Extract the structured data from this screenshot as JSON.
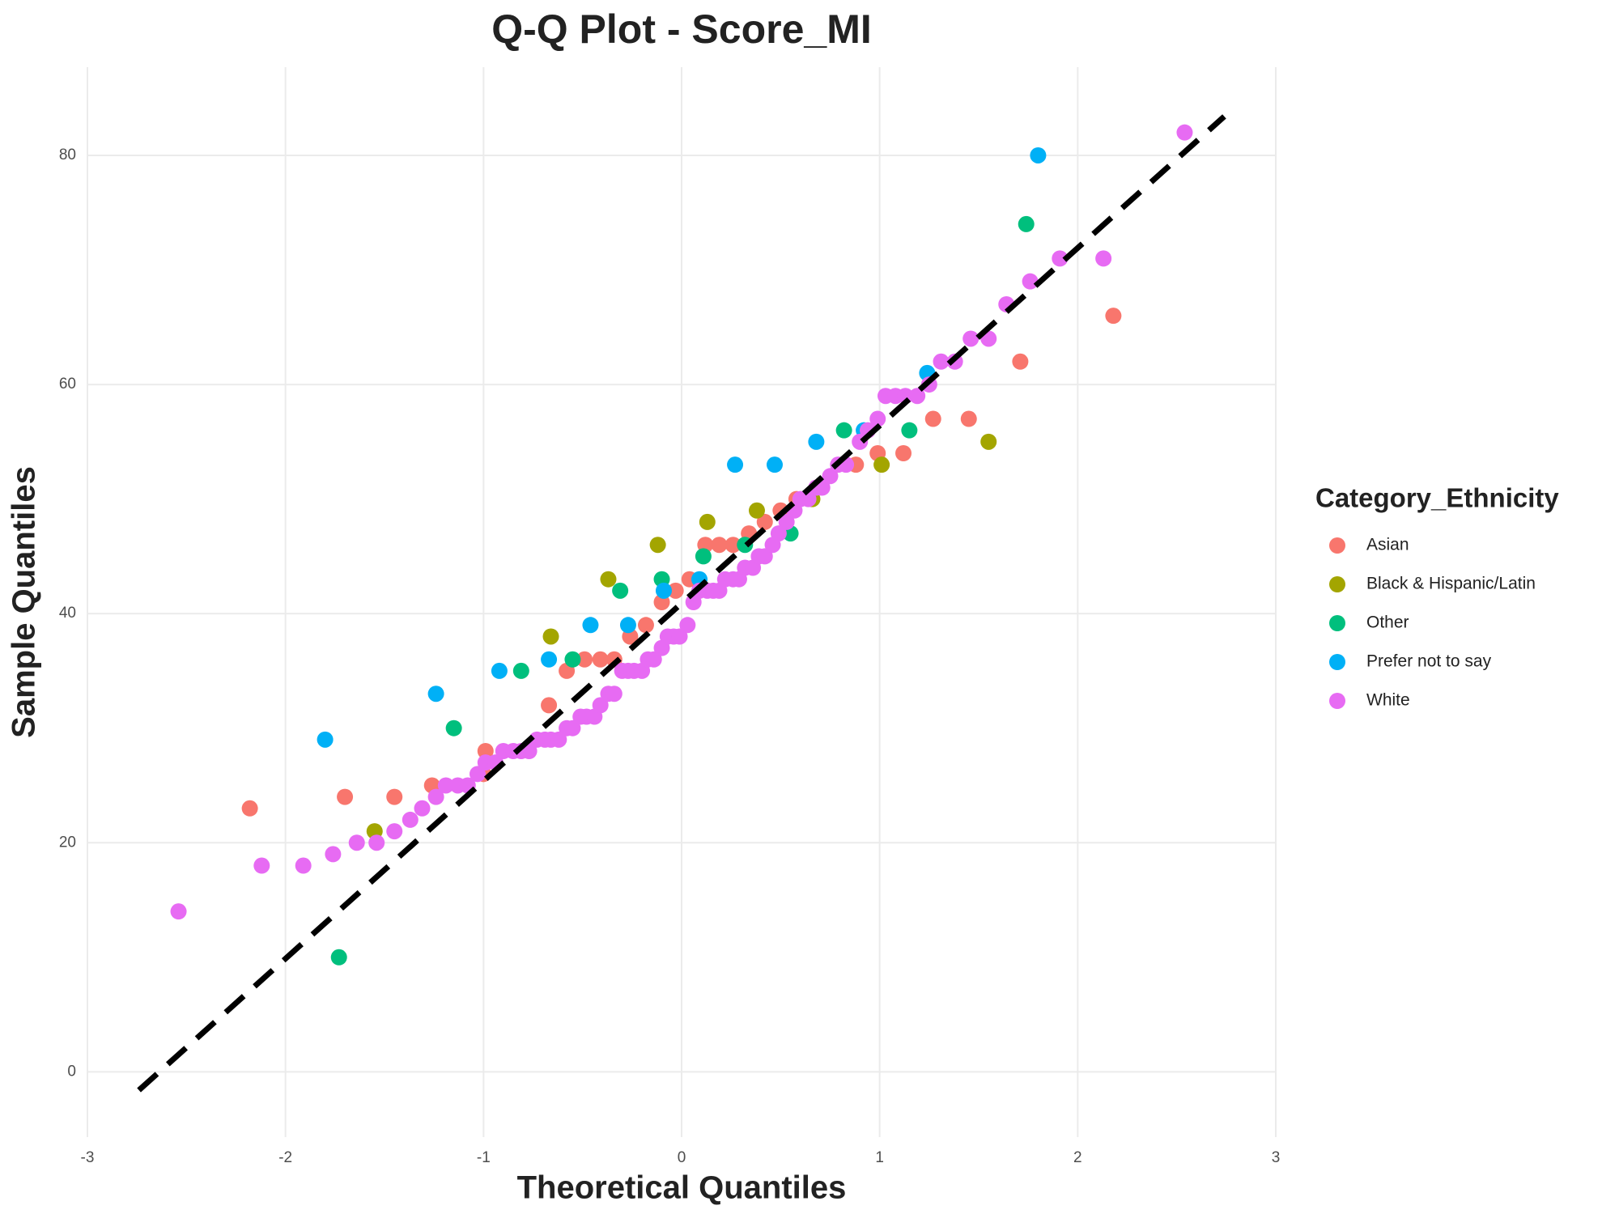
{
  "chart_data": {
    "type": "scatter",
    "title": "Q-Q Plot -  Score_MI",
    "x_label": "Theoretical Quantiles",
    "y_label": "Sample Quantiles",
    "legend_title": "Category_Ethnicity",
    "legend_position": "right",
    "grid": true,
    "xlim": [
      -3,
      3
    ],
    "ylim": [
      -5.7,
      87.7
    ],
    "xticks": [
      -3,
      -2,
      -1,
      0,
      1,
      2,
      3
    ],
    "yticks": [
      0,
      20,
      40,
      60,
      80
    ],
    "reference_line": {
      "x": [
        -2.74,
        2.74
      ],
      "y": [
        -1.6,
        83.4
      ],
      "color": "#000000",
      "style": "dashed"
    },
    "series": [
      {
        "name": "Asian",
        "color": "#f8766d",
        "x": [
          -2.18,
          -1.7,
          -1.45,
          -1.26,
          -1.0,
          -0.99,
          -0.67,
          -0.58,
          -0.49,
          -0.41,
          -0.34,
          -0.26,
          -0.18,
          -0.1,
          -0.03,
          0.04,
          0.12,
          0.19,
          0.26,
          0.34,
          0.42,
          0.5,
          0.58,
          0.88,
          0.99,
          1.12,
          1.27,
          1.45,
          1.71,
          2.18
        ],
        "y": [
          23,
          24,
          24,
          25,
          26,
          28,
          32,
          35,
          36,
          36,
          36,
          38,
          39,
          41,
          42,
          43,
          46,
          46,
          46,
          47,
          48,
          49,
          50,
          53,
          54,
          54,
          57,
          57,
          62,
          66
        ]
      },
      {
        "name": "Black & Hispanic/Latin",
        "color": "#a3a500",
        "x": [
          -1.55,
          -0.66,
          -0.37,
          -0.12,
          0.13,
          0.38,
          0.66,
          1.01,
          1.55
        ],
        "y": [
          21,
          38,
          43,
          46,
          48,
          49,
          50,
          53,
          55
        ]
      },
      {
        "name": "Other",
        "color": "#00bf7d",
        "x": [
          -1.73,
          -1.15,
          -0.81,
          -0.55,
          -0.31,
          -0.1,
          0.11,
          0.32,
          0.55,
          0.82,
          1.15,
          1.74
        ],
        "y": [
          10,
          30,
          35,
          36,
          42,
          43,
          45,
          46,
          47,
          56,
          56,
          74
        ]
      },
      {
        "name": "Prefer not to say",
        "color": "#00b0f6",
        "x": [
          -1.8,
          -1.24,
          -0.92,
          -0.67,
          -0.46,
          -0.27,
          -0.09,
          0.09,
          0.27,
          0.47,
          0.68,
          0.92,
          1.24,
          1.8
        ],
        "y": [
          29,
          33,
          35,
          36,
          39,
          39,
          42,
          43,
          53,
          53,
          55,
          56,
          61,
          80
        ]
      },
      {
        "name": "White",
        "color": "#e76bf3",
        "x": [
          -2.54,
          -2.12,
          -1.91,
          -1.76,
          -1.64,
          -1.54,
          -1.45,
          -1.37,
          -1.31,
          -1.24,
          -1.19,
          -1.13,
          -1.08,
          -1.03,
          -0.99,
          -0.94,
          -0.9,
          -0.85,
          -0.81,
          -0.77,
          -0.73,
          -0.69,
          -0.66,
          -0.62,
          -0.58,
          -0.55,
          -0.51,
          -0.48,
          -0.44,
          -0.41,
          -0.37,
          -0.34,
          -0.3,
          -0.27,
          -0.24,
          -0.2,
          -0.17,
          -0.14,
          -0.1,
          -0.07,
          -0.04,
          -0.01,
          0.03,
          0.06,
          0.09,
          0.13,
          0.16,
          0.19,
          0.22,
          0.26,
          0.29,
          0.32,
          0.36,
          0.39,
          0.42,
          0.46,
          0.49,
          0.53,
          0.57,
          0.6,
          0.64,
          0.68,
          0.71,
          0.75,
          0.79,
          0.83,
          0.9,
          0.94,
          0.99,
          1.03,
          1.08,
          1.13,
          1.19,
          1.25,
          1.31,
          1.38,
          1.46,
          1.55,
          1.64,
          1.76,
          1.91,
          2.13,
          2.54
        ],
        "y": [
          14,
          18,
          18,
          19,
          20,
          20,
          21,
          22,
          23,
          24,
          25,
          25,
          25,
          26,
          27,
          27,
          28,
          28,
          28,
          28,
          29,
          29,
          29,
          29,
          30,
          30,
          31,
          31,
          31,
          32,
          33,
          33,
          35,
          35,
          35,
          35,
          36,
          36,
          37,
          38,
          38,
          38,
          39,
          41,
          42,
          42,
          42,
          42,
          43,
          43,
          43,
          44,
          44,
          45,
          45,
          46,
          47,
          48,
          49,
          50,
          50,
          51,
          51,
          52,
          53,
          53,
          55,
          56,
          57,
          59,
          59,
          59,
          59,
          60,
          62,
          62,
          64,
          64,
          67,
          69,
          71,
          71,
          82
        ]
      }
    ]
  }
}
